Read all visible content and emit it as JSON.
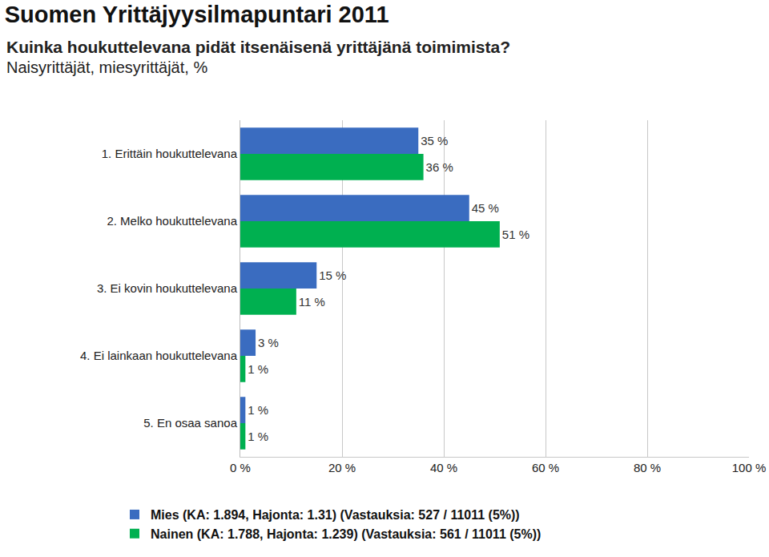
{
  "chart_data": {
    "type": "bar",
    "orientation": "horizontal",
    "title": "Suomen Yrittäjyysilmapuntari 2011",
    "subtitle": [
      "Kuinka houkuttelevana pidät itsenäisenä yrittäjänä toimimista?",
      "Naisyrittäjät, miesyrittäjät, %"
    ],
    "categories": [
      "1. Erittäin houkuttelevana",
      "2. Melko houkuttelevana",
      "3. Ei kovin houkuttelevana",
      "4. Ei lainkaan houkuttelevana",
      "5. En osaa sanoa"
    ],
    "series": [
      {
        "name": "Mies (KA: 1.894, Hajonta: 1.31) (Vastauksia: 527 / 11011 (5%))",
        "color": "#3a6cc0",
        "values": [
          35,
          45,
          15,
          3,
          1
        ],
        "value_labels": [
          "35 %",
          "45 %",
          "15 %",
          "3 %",
          "1 %"
        ]
      },
      {
        "name": "Nainen (KA: 1.788, Hajonta: 1.239) (Vastauksia: 561 / 11011 (5%))",
        "color": "#00b050",
        "values": [
          36,
          51,
          11,
          1,
          1
        ],
        "value_labels": [
          "36 %",
          "51 %",
          "11 %",
          "1 %",
          "1 %"
        ]
      }
    ],
    "xlim": [
      0,
      100
    ],
    "xticks": [
      {
        "value": 0,
        "label": "0 %"
      },
      {
        "value": 20,
        "label": "20 %"
      },
      {
        "value": 40,
        "label": "40 %"
      },
      {
        "value": 60,
        "label": "60 %"
      },
      {
        "value": 80,
        "label": "80 %"
      },
      {
        "value": 100,
        "label": "100 %"
      }
    ],
    "grid": true,
    "data_labels": true,
    "legend": "bottom"
  }
}
